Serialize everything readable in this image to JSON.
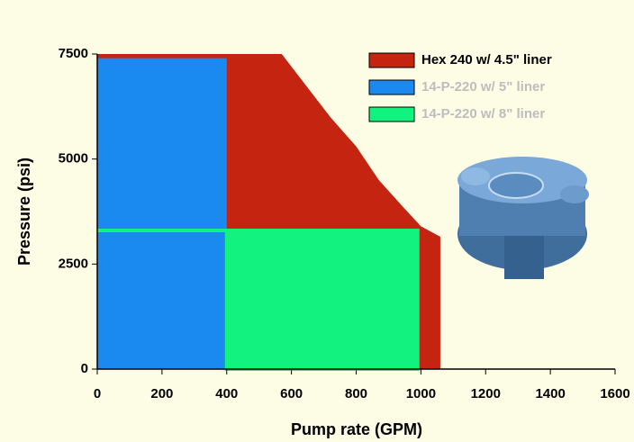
{
  "chart_data": {
    "type": "area",
    "xlabel": "Pump rate (GPM)",
    "ylabel": "Pressure (psi)",
    "xlim": [
      0,
      1600
    ],
    "ylim": [
      0,
      7500
    ],
    "xticks": [
      0,
      200,
      400,
      600,
      800,
      1000,
      1200,
      1400,
      1600
    ],
    "yticks": [
      0,
      2500,
      5000,
      7500
    ],
    "legend": "top-right",
    "series": [
      {
        "name": "Hex 240 w/ 4.5\" liner",
        "color": "#c42410",
        "x": [
          0,
          570,
          650,
          720,
          800,
          870,
          940,
          1000,
          1060,
          1060,
          0
        ],
        "values": [
          7500,
          7500,
          6700,
          6000,
          5300,
          4500,
          3900,
          3400,
          3150,
          0,
          0
        ]
      },
      {
        "name": "14-P-220 w/ 5\" liner",
        "color": "#1a8af0",
        "x": [
          0,
          0,
          400,
          400
        ],
        "values": [
          0,
          7400,
          7400,
          0
        ]
      },
      {
        "name": "14-P-220 w/ 8\" liner",
        "color": "#12f27f",
        "x": [
          0,
          990,
          990,
          400,
          400,
          0
        ],
        "values": [
          3300,
          3300,
          0,
          0,
          3300,
          3300
        ]
      }
    ]
  }
}
